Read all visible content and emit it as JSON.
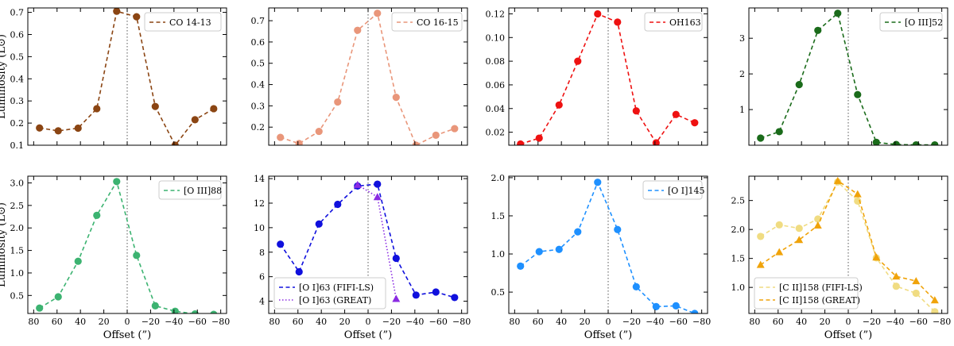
{
  "chart_data": [
    {
      "type": "line",
      "title": "",
      "xlabel": "",
      "ylabel": "Luminosity (L⊙)",
      "xlim": [
        85,
        -85
      ],
      "ylim": [
        0.1,
        0.72
      ],
      "yticks": [
        0.1,
        0.2,
        0.3,
        0.4,
        0.5,
        0.6,
        0.7
      ],
      "yticklabels": [
        "0.1",
        "0.2",
        "0.3",
        "0.4",
        "0.5",
        "0.6",
        "0.7"
      ],
      "xticks": [],
      "xticklabels": [],
      "legend_position": "top-right",
      "series": [
        {
          "name": "CO 14-13",
          "color": "#8b4513",
          "marker": "circle",
          "dash": "dashed",
          "x": [
            75,
            59,
            42,
            26,
            9,
            -8,
            -24,
            -41,
            -58,
            -74
          ],
          "y": [
            0.178,
            0.165,
            0.177,
            0.265,
            0.705,
            0.68,
            0.275,
            0.1,
            0.215,
            0.265
          ]
        }
      ]
    },
    {
      "type": "line",
      "title": "",
      "xlabel": "",
      "ylabel": "",
      "xlim": [
        85,
        -85
      ],
      "ylim": [
        0.115,
        0.76
      ],
      "yticks": [
        0.2,
        0.3,
        0.4,
        0.5,
        0.6,
        0.7
      ],
      "yticklabels": [
        "0.2",
        "0.3",
        "0.4",
        "0.5",
        "0.6",
        "0.7"
      ],
      "xticks": [],
      "xticklabels": [],
      "legend_position": "top-right",
      "series": [
        {
          "name": "CO 16-15",
          "color": "#e9967a",
          "marker": "circle",
          "dash": "dashed",
          "x": [
            75,
            59,
            42,
            26,
            9,
            -8,
            -24,
            -41,
            -58,
            -74
          ],
          "y": [
            0.152,
            0.123,
            0.18,
            0.318,
            0.655,
            0.735,
            0.34,
            0.115,
            0.162,
            0.193
          ]
        }
      ]
    },
    {
      "type": "line",
      "title": "",
      "xlabel": "",
      "ylabel": "",
      "xlim": [
        85,
        -85
      ],
      "ylim": [
        0.009,
        0.125
      ],
      "yticks": [
        0.02,
        0.04,
        0.06,
        0.08,
        0.1,
        0.12
      ],
      "yticklabels": [
        "0.02",
        "0.04",
        "0.06",
        "0.08",
        "0.10",
        "0.12"
      ],
      "xticks": [],
      "xticklabels": [],
      "legend_position": "top-right",
      "series": [
        {
          "name": "OH163",
          "color": "#ee1111",
          "marker": "circle",
          "dash": "dashed",
          "x": [
            75,
            59,
            42,
            26,
            9,
            -8,
            -24,
            -41,
            -58,
            -74
          ],
          "y": [
            0.01,
            0.015,
            0.043,
            0.08,
            0.12,
            0.113,
            0.038,
            0.011,
            0.035,
            0.028
          ]
        }
      ]
    },
    {
      "type": "line",
      "title": "",
      "xlabel": "",
      "ylabel": "",
      "xlim": [
        85,
        -85
      ],
      "ylim": [
        0.0,
        3.85
      ],
      "yticks": [
        1,
        2,
        3
      ],
      "yticklabels": [
        "1",
        "2",
        "3"
      ],
      "xticks": [],
      "xticklabels": [],
      "legend_position": "top-right",
      "series": [
        {
          "name": "[O III]52",
          "color": "#1a6b1a",
          "marker": "circle",
          "dash": "dashed",
          "x": [
            75,
            59,
            42,
            26,
            9,
            -8,
            -24,
            -41,
            -58,
            -74
          ],
          "y": [
            0.2,
            0.38,
            1.7,
            3.22,
            3.7,
            1.42,
            0.08,
            0.02,
            0.01,
            0.01
          ]
        }
      ]
    },
    {
      "type": "line",
      "title": "",
      "xlabel": "Offset (”)",
      "ylabel": "Luminosity (L⊙)",
      "xlim": [
        85,
        -85
      ],
      "ylim": [
        0.1,
        3.15
      ],
      "yticks": [
        0.5,
        1.0,
        1.5,
        2.0,
        2.5,
        3.0
      ],
      "yticklabels": [
        "0.5",
        "1.0",
        "1.5",
        "2.0",
        "2.5",
        "3.0"
      ],
      "xticks": [
        80,
        60,
        40,
        20,
        0,
        -20,
        -40,
        -60,
        -80
      ],
      "xticklabels": [
        "80",
        "60",
        "40",
        "20",
        "0",
        "−20",
        "−40",
        "−60",
        "−80"
      ],
      "legend_position": "top-right",
      "series": [
        {
          "name": "[O III]88",
          "color": "#3cb371",
          "marker": "circle",
          "dash": "dashed",
          "x": [
            75,
            59,
            42,
            26,
            9,
            -8,
            -24,
            -41,
            -58,
            -74
          ],
          "y": [
            0.22,
            0.47,
            1.26,
            2.28,
            3.03,
            1.39,
            0.27,
            0.15,
            0.09,
            0.08
          ]
        }
      ]
    },
    {
      "type": "line",
      "title": "",
      "xlabel": "Offset (”)",
      "ylabel": "",
      "xlim": [
        85,
        -85
      ],
      "ylim": [
        3.0,
        14.2
      ],
      "yticks": [
        4,
        6,
        8,
        10,
        12,
        14
      ],
      "yticklabels": [
        "4",
        "6",
        "8",
        "10",
        "12",
        "14"
      ],
      "xticks": [
        80,
        60,
        40,
        20,
        0,
        -20,
        -40,
        -60,
        -80
      ],
      "xticklabels": [
        "80",
        "60",
        "40",
        "20",
        "0",
        "−20",
        "−40",
        "−60",
        "−80"
      ],
      "legend_position": "bottom-left",
      "series": [
        {
          "name": "[O I]63 (FIFI-LS)",
          "color": "#1010dd",
          "marker": "circle",
          "dash": "dashed",
          "x": [
            75,
            59,
            42,
            26,
            9,
            -8,
            -24,
            -41,
            -58,
            -74
          ],
          "y": [
            8.65,
            6.4,
            10.3,
            11.9,
            13.4,
            13.55,
            7.5,
            4.5,
            4.75,
            4.3
          ]
        },
        {
          "name": "[O I]63 (GREAT)",
          "color": "#8a2be2",
          "marker": "triangle",
          "dash": "dotted",
          "x": [
            9,
            -8,
            -24
          ],
          "y": [
            13.5,
            12.5,
            4.2
          ]
        }
      ]
    },
    {
      "type": "line",
      "title": "",
      "xlabel": "Offset (”)",
      "ylabel": "",
      "xlim": [
        85,
        -85
      ],
      "ylim": [
        0.22,
        2.02
      ],
      "yticks": [
        0.5,
        1.0,
        1.5,
        2.0
      ],
      "yticklabels": [
        "0.5",
        "1.0",
        "1.5",
        "2.0"
      ],
      "xticks": [
        80,
        60,
        40,
        20,
        0,
        -20,
        -40,
        -60,
        -80
      ],
      "xticklabels": [
        "80",
        "60",
        "40",
        "20",
        "0",
        "−20",
        "−40",
        "−60",
        "−80"
      ],
      "legend_position": "top-right",
      "series": [
        {
          "name": "[O I]145",
          "color": "#1e90ff",
          "marker": "circle",
          "dash": "dashed",
          "x": [
            75,
            59,
            42,
            26,
            9,
            -8,
            -24,
            -41,
            -58,
            -74
          ],
          "y": [
            0.84,
            1.03,
            1.06,
            1.29,
            1.94,
            1.32,
            0.57,
            0.31,
            0.32,
            0.22
          ]
        }
      ]
    },
    {
      "type": "line",
      "title": "",
      "xlabel": "Offset (”)",
      "ylabel": "",
      "xlim": [
        85,
        -85
      ],
      "ylim": [
        0.55,
        2.92
      ],
      "yticks": [
        1.0,
        1.5,
        2.0,
        2.5
      ],
      "yticklabels": [
        "1.0",
        "1.5",
        "2.0",
        "2.5"
      ],
      "xticks": [
        80,
        60,
        40,
        20,
        0,
        -20,
        -40,
        -60,
        -80
      ],
      "xticklabels": [
        "80",
        "60",
        "40",
        "20",
        "0",
        "−20",
        "−40",
        "−60",
        "−80"
      ],
      "legend_position": "bottom-left",
      "series": [
        {
          "name": "[C II]158 (FIFI-LS)",
          "color": "#f0dc82",
          "marker": "circle",
          "dash": "dashed",
          "x": [
            75,
            59,
            42,
            26,
            9,
            -8,
            -24,
            -41,
            -58,
            -74
          ],
          "y": [
            1.88,
            2.08,
            2.02,
            2.18,
            2.82,
            2.49,
            1.51,
            1.02,
            0.9,
            0.58
          ]
        },
        {
          "name": "[C II]158 (GREAT)",
          "color": "#f0a30a",
          "marker": "triangle",
          "dash": "dashed",
          "x": [
            75,
            59,
            42,
            26,
            9,
            -8,
            -24,
            -41,
            -58,
            -74
          ],
          "y": [
            1.39,
            1.61,
            1.82,
            2.07,
            2.84,
            2.61,
            1.52,
            1.19,
            1.11,
            0.78
          ]
        }
      ]
    }
  ]
}
